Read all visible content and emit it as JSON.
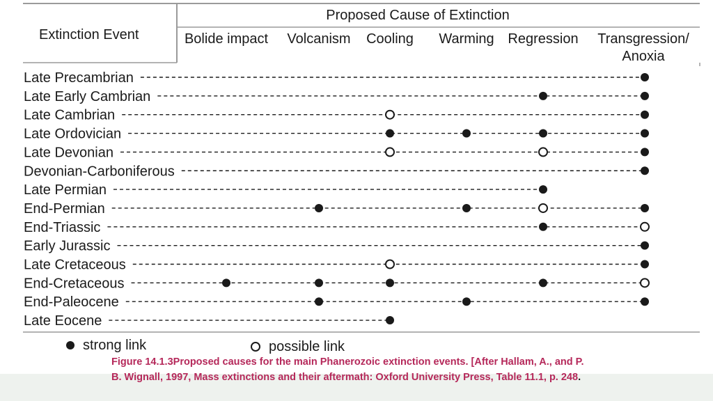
{
  "table": {
    "header": {
      "group_title": "Proposed Cause of Extinction",
      "event_column": "Extinction Event",
      "causes": [
        {
          "line1": "Bolide impact",
          "line2": ""
        },
        {
          "line1": "Volcanism",
          "line2": ""
        },
        {
          "line1": "Cooling",
          "line2": ""
        },
        {
          "line1": "Warming",
          "line2": ""
        },
        {
          "line1": "Regression",
          "line2": ""
        },
        {
          "line1": "Transgression/",
          "line2": "Anoxia"
        }
      ]
    },
    "rows": [
      {
        "event": "Late Precambrian",
        "links": [
          null,
          null,
          null,
          null,
          null,
          "strong"
        ]
      },
      {
        "event": "Late Early Cambrian",
        "links": [
          null,
          null,
          null,
          null,
          "strong",
          "strong"
        ]
      },
      {
        "event": "Late Cambrian",
        "links": [
          null,
          null,
          "possible",
          null,
          null,
          "strong"
        ]
      },
      {
        "event": "Late Ordovician",
        "links": [
          null,
          null,
          "strong",
          "strong",
          "strong",
          "strong"
        ]
      },
      {
        "event": "Late Devonian",
        "links": [
          null,
          null,
          "possible",
          null,
          "possible",
          "strong"
        ]
      },
      {
        "event": "Devonian-Carboniferous",
        "links": [
          null,
          null,
          null,
          null,
          null,
          "strong"
        ]
      },
      {
        "event": "Late Permian",
        "links": [
          null,
          null,
          null,
          null,
          "strong",
          null
        ]
      },
      {
        "event": "End-Permian",
        "links": [
          null,
          "strong",
          null,
          "strong",
          "possible",
          "strong"
        ]
      },
      {
        "event": "End-Triassic",
        "links": [
          null,
          null,
          null,
          null,
          "strong",
          "possible"
        ]
      },
      {
        "event": "Early Jurassic",
        "links": [
          null,
          null,
          null,
          null,
          null,
          "strong"
        ]
      },
      {
        "event": "Late Cretaceous",
        "links": [
          null,
          null,
          "possible",
          null,
          null,
          "strong"
        ]
      },
      {
        "event": "End-Cretaceous",
        "links": [
          "strong",
          "strong",
          "strong",
          null,
          "strong",
          "possible"
        ]
      },
      {
        "event": "End-Paleocene",
        "links": [
          null,
          "strong",
          null,
          "strong",
          null,
          "strong"
        ]
      },
      {
        "event": "Late Eocene",
        "links": [
          null,
          null,
          "strong",
          null,
          null,
          null
        ]
      }
    ]
  },
  "legend": {
    "strong": "strong link",
    "possible": "possible link"
  },
  "caption": {
    "text": "Figure 14.1.3Proposed causes for the main Phanerozoic extinction events. [After Hallam, A., and P. B. Wignall, 1997, Mass extinctions and their aftermath: Oxford University Press, Table 11.1, p. 248",
    "end": "."
  },
  "colors": {
    "text": "#1a1a1a",
    "caption": "#b5285a",
    "rules": "#9a9a9a",
    "band": "#eef2ee"
  }
}
